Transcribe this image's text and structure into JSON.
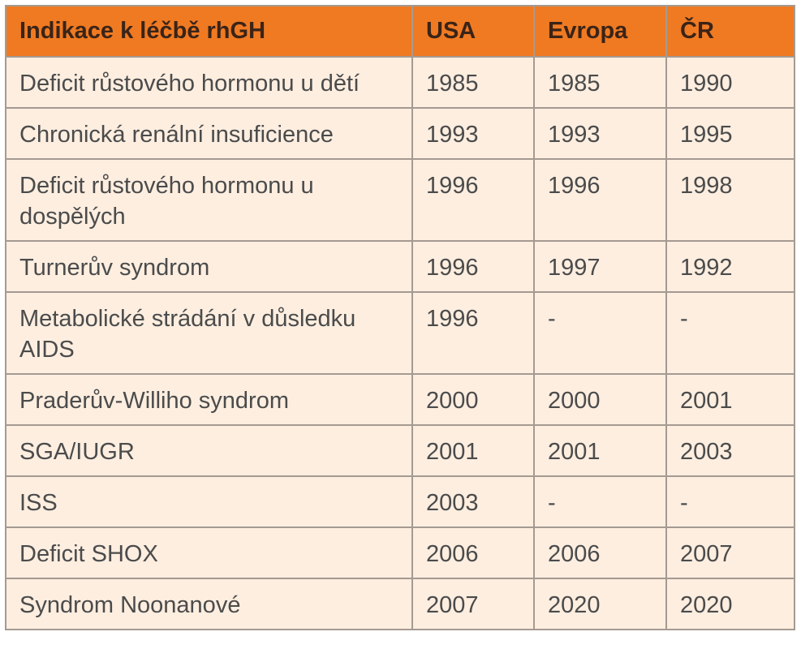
{
  "table": {
    "headers": [
      "Indikace k léčbě rhGH",
      "USA",
      "Evropa",
      "ČR"
    ],
    "rows": [
      [
        "Deficit růstového hormonu u dětí",
        "1985",
        "1985",
        "1990"
      ],
      [
        "Chronická renální insuficience",
        "1993",
        "1993",
        "1995"
      ],
      [
        "Deficit růstového hormonu u dospělých",
        "1996",
        "1996",
        "1998"
      ],
      [
        "Turnerův syndrom",
        "1996",
        "1997",
        "1992"
      ],
      [
        "Metabolické strádání v důsledku AIDS",
        "1996",
        "-",
        "-"
      ],
      [
        "Praderův-Williho syndrom",
        "2000",
        "2000",
        "2001"
      ],
      [
        "SGA/IUGR",
        "2001",
        "2001",
        "2003"
      ],
      [
        "ISS",
        "2003",
        "-",
        "-"
      ],
      [
        "Deficit SHOX",
        "2006",
        "2006",
        "2007"
      ],
      [
        "Syndrom Noonanové",
        "2007",
        "2020",
        "2020"
      ]
    ]
  },
  "colors": {
    "header_background": "#f07a22",
    "row_background": "#fdeee0",
    "border": "#a59a91"
  }
}
